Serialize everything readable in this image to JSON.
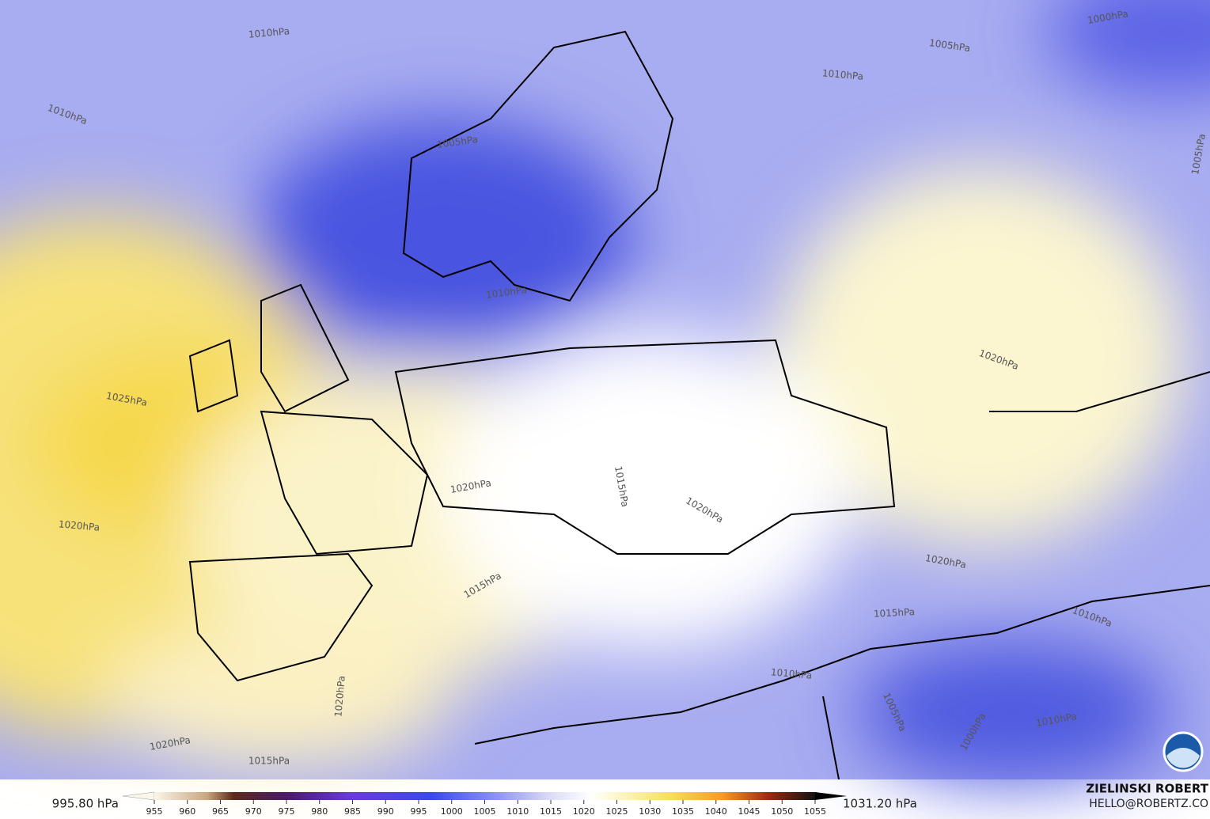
{
  "isobars": [
    "1010hPa",
    "1000hPa",
    "1005hPa",
    "1010hPa",
    "1010hPa",
    "1005hPa",
    "1005hPa",
    "1010hPa",
    "1020hPa",
    "1025hPa",
    "1015hPa",
    "1020hPa",
    "1020hPa",
    "1020hPa",
    "1020hPa",
    "1015hPa",
    "1015hPa",
    "1010hPa",
    "1010hPa",
    "1020hPa",
    "1005hPa",
    "1010hPa",
    "1000hPa",
    "1020hPa",
    "1015hPa"
  ],
  "colorbar": {
    "min_label": "995.80 hPa",
    "max_label": "1031.20 hPa",
    "ticks": [
      955,
      960,
      965,
      970,
      975,
      980,
      985,
      990,
      995,
      1000,
      1005,
      1010,
      1015,
      1020,
      1025,
      1030,
      1035,
      1040,
      1045,
      1050,
      1055
    ]
  },
  "credit": {
    "name": "ZIELINSKI ROBERT",
    "email": "HELLO@ROBERTZ.CO"
  }
}
